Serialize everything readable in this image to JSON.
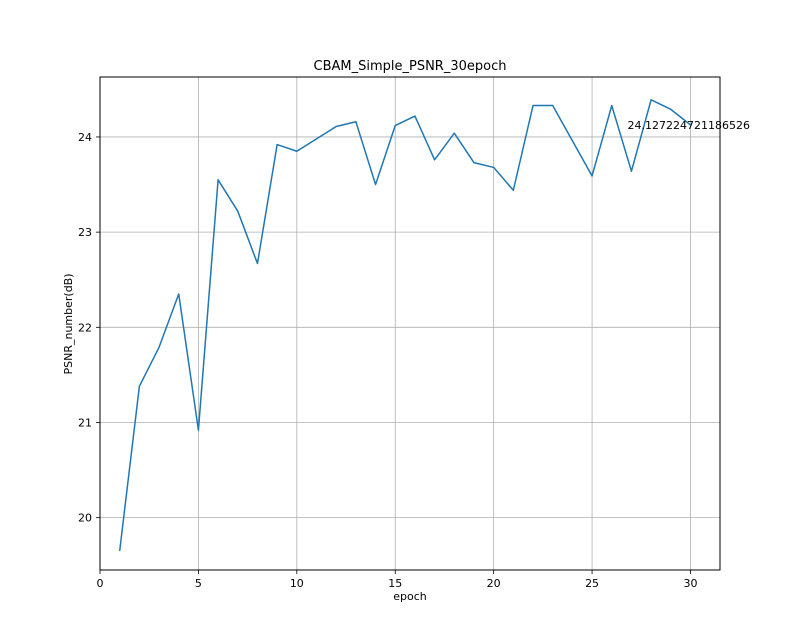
{
  "chart_data": {
    "type": "line",
    "title": "CBAM_Simple_PSNR_30epoch",
    "xlabel": "epoch",
    "ylabel": "PSNR_number(dB)",
    "xlim": [
      0,
      31.5
    ],
    "ylim": [
      19.45,
      24.63
    ],
    "xticks": [
      0,
      5,
      10,
      15,
      20,
      25,
      30
    ],
    "yticks": [
      20,
      21,
      22,
      23,
      24
    ],
    "grid": true,
    "series": [
      {
        "color": "#1f77b4",
        "x": [
          1,
          2,
          3,
          4,
          5,
          6,
          7,
          8,
          9,
          10,
          11,
          12,
          13,
          14,
          15,
          16,
          17,
          18,
          19,
          20,
          21,
          22,
          23,
          24,
          25,
          26,
          27,
          28,
          29,
          30
        ],
        "y": [
          19.65,
          21.38,
          21.79,
          22.35,
          20.92,
          23.55,
          23.22,
          22.67,
          23.92,
          23.85,
          23.98,
          24.11,
          24.16,
          23.5,
          24.12,
          24.22,
          23.76,
          24.04,
          23.73,
          23.68,
          23.44,
          24.33,
          24.33,
          23.96,
          23.59,
          24.33,
          23.64,
          24.39,
          24.29,
          24.127224721186526
        ]
      }
    ],
    "annotations": [
      {
        "text": "24.127224721186526",
        "x": 26.8,
        "y": 24.127224721186526
      }
    ]
  }
}
